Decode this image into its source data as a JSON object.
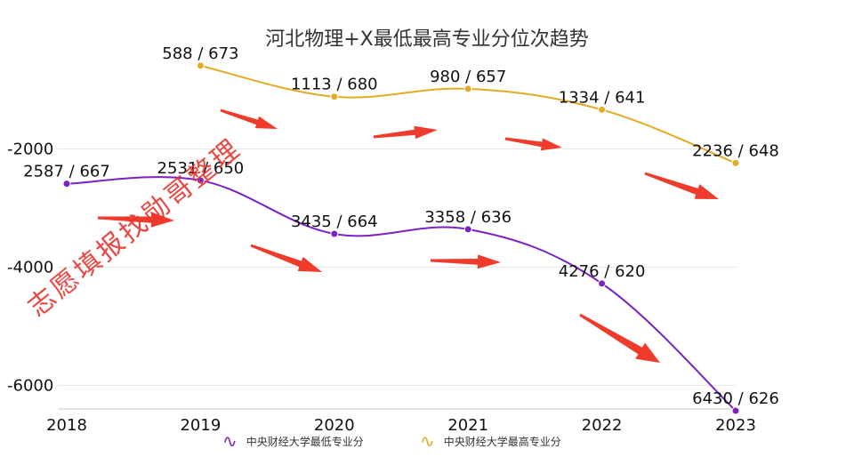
{
  "chart_data": {
    "type": "line",
    "title": "河北物理+X最低最高专业分位次趋势",
    "x": [
      "2018",
      "2019",
      "2020",
      "2021",
      "2022",
      "2023"
    ],
    "ylim": [
      -6400,
      -500
    ],
    "yticks": [
      "-2000",
      "-4000",
      "-6000"
    ],
    "grid": true,
    "legend_position": "bottom",
    "series": [
      {
        "name": "中央财经大学最低专业分",
        "color": "#7b22c4",
        "values": [
          -2587,
          -2531,
          -3435,
          -3358,
          -4276,
          -6430
        ],
        "labels": [
          "2587 / 667",
          "2531 / 650",
          "3435 / 664",
          "3358 / 636",
          "4276 / 620",
          "6430 / 626"
        ]
      },
      {
        "name": "中央财经大学最高专业分",
        "color": "#e3ac25",
        "values": [
          null,
          -588,
          -1113,
          -980,
          -1334,
          -2236
        ],
        "labels": [
          "",
          "588 / 673",
          "1113 / 680",
          "980 / 657",
          "1334 / 641",
          "2236 / 648"
        ]
      }
    ]
  },
  "watermark": {
    "text": "志愿填报找勋哥整理",
    "color": "#e8342e"
  },
  "annotations": {
    "arrow_color": "#ef3b2b",
    "arrow_count": 10
  }
}
